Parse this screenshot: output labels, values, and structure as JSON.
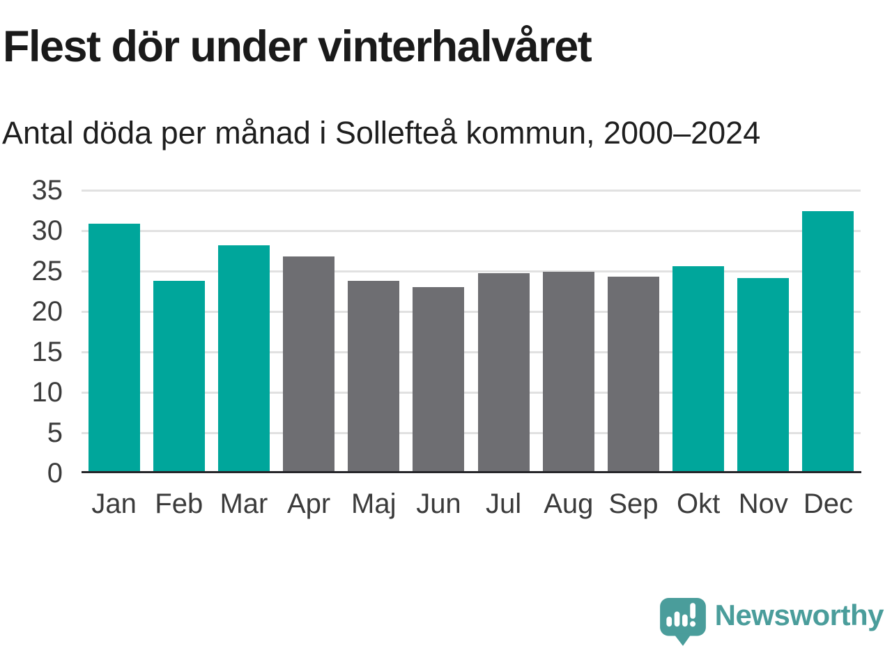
{
  "chart_data": {
    "type": "bar",
    "title": "Flest dör under vinterhalvåret",
    "subtitle": "Antal döda per månad i Sollefteå kommun, 2000–2024",
    "categories": [
      "Jan",
      "Feb",
      "Mar",
      "Apr",
      "Maj",
      "Jun",
      "Jul",
      "Aug",
      "Sep",
      "Okt",
      "Nov",
      "Dec"
    ],
    "values": [
      30.9,
      23.8,
      28.2,
      26.8,
      23.8,
      23.0,
      24.7,
      24.9,
      24.3,
      25.6,
      24.1,
      32.4
    ],
    "groups": [
      "winter",
      "winter",
      "winter",
      "summer",
      "summer",
      "summer",
      "summer",
      "summer",
      "summer",
      "winter",
      "winter",
      "winter"
    ],
    "bar_colors_by_group": {
      "winter": "#00a69b",
      "summer": "#6e6e72"
    },
    "xlabel": "",
    "ylabel": "",
    "ylim": [
      0,
      35
    ],
    "yticks": [
      0,
      5,
      10,
      15,
      20,
      25,
      30,
      35
    ],
    "grid": true,
    "legend_position": "none"
  },
  "colors": {
    "teal_bar": "#00a69b",
    "gray_bar": "#6e6e72",
    "gridline": "#e1e1e1",
    "axis_line": "#26262a",
    "title_text": "#1a1a1a",
    "tick_text": "#3b3b3b",
    "brand_teal": "#4a9d9b"
  },
  "footer": {
    "brand": "Newsworthy",
    "logo_icon": "newsworthy-speech-bubble-bar-chart-icon"
  }
}
